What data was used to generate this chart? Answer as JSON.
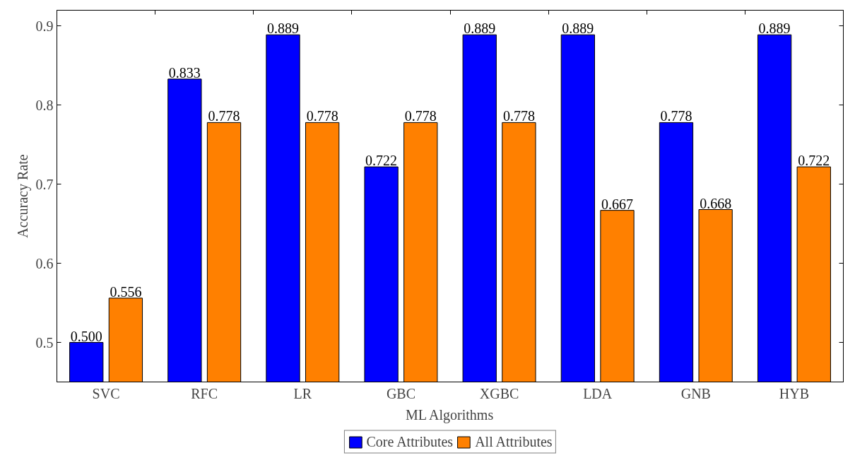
{
  "chart_data": {
    "type": "bar",
    "xlabel": "ML Algorithms",
    "ylabel": "Accuracy Rate",
    "categories": [
      "SVC",
      "RFC",
      "LR",
      "GBC",
      "XGBC",
      "LDA",
      "GNB",
      "HYB"
    ],
    "series": [
      {
        "name": "Core Attributes",
        "color": "#0000ff",
        "values": [
          0.5,
          0.833,
          0.889,
          0.722,
          0.889,
          0.889,
          0.778,
          0.889
        ],
        "value_labels": [
          "0.500",
          "0.833",
          "0.889",
          "0.722",
          "0.889",
          "0.889",
          "0.778",
          "0.889"
        ]
      },
      {
        "name": "All Attributes",
        "color": "#ff8000",
        "values": [
          0.556,
          0.778,
          0.778,
          0.778,
          0.778,
          0.667,
          0.668,
          0.722
        ],
        "value_labels": [
          "0.556",
          "0.778",
          "0.778",
          "0.778",
          "0.778",
          "0.667",
          "0.668",
          "0.722"
        ]
      }
    ],
    "ylim": [
      0.45,
      0.92
    ],
    "yticks": [
      0.5,
      0.6,
      0.7,
      0.8,
      0.9
    ],
    "grid": false,
    "legend": "bottom"
  }
}
